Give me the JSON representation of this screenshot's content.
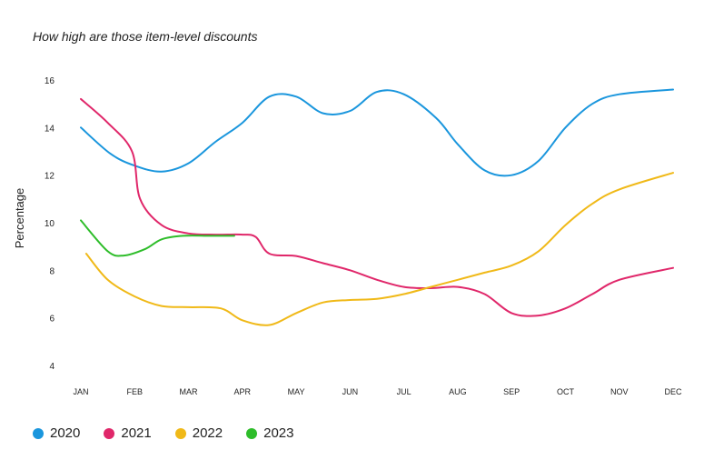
{
  "chart_data": {
    "type": "line",
    "title": "How high are those item-level discounts",
    "xlabel": "",
    "ylabel": "Percentage",
    "categories": [
      "JAN",
      "FEB",
      "MAR",
      "APR",
      "MAY",
      "JUN",
      "JUL",
      "AUG",
      "SEP",
      "OCT",
      "NOV",
      "DEC"
    ],
    "ylim": [
      4,
      16
    ],
    "yticks": [
      4,
      6,
      8,
      10,
      12,
      14,
      16
    ],
    "grid": false,
    "legend_position": "bottom-left",
    "series": [
      {
        "name": "2020",
        "color": "#1a96dd",
        "points": [
          [
            0,
            14.0
          ],
          [
            0.55,
            12.9
          ],
          [
            1.0,
            12.4
          ],
          [
            1.5,
            12.15
          ],
          [
            2.0,
            12.5
          ],
          [
            2.5,
            13.4
          ],
          [
            3.0,
            14.2
          ],
          [
            3.5,
            15.3
          ],
          [
            4.0,
            15.3
          ],
          [
            4.5,
            14.6
          ],
          [
            5.0,
            14.7
          ],
          [
            5.5,
            15.5
          ],
          [
            6.0,
            15.4
          ],
          [
            6.6,
            14.4
          ],
          [
            7.0,
            13.3
          ],
          [
            7.5,
            12.2
          ],
          [
            8.0,
            12.0
          ],
          [
            8.5,
            12.6
          ],
          [
            9.0,
            14.0
          ],
          [
            9.5,
            15.0
          ],
          [
            10.0,
            15.4
          ],
          [
            11.0,
            15.6
          ]
        ]
      },
      {
        "name": "2021",
        "color": "#e0276a",
        "points": [
          [
            0,
            15.2
          ],
          [
            0.5,
            14.2
          ],
          [
            0.95,
            13.0
          ],
          [
            1.1,
            11.0
          ],
          [
            1.5,
            9.9
          ],
          [
            2.0,
            9.55
          ],
          [
            2.5,
            9.5
          ],
          [
            3.0,
            9.5
          ],
          [
            3.25,
            9.4
          ],
          [
            3.5,
            8.7
          ],
          [
            4.0,
            8.6
          ],
          [
            4.5,
            8.3
          ],
          [
            5.0,
            8.0
          ],
          [
            5.5,
            7.6
          ],
          [
            6.0,
            7.3
          ],
          [
            6.5,
            7.25
          ],
          [
            7.0,
            7.3
          ],
          [
            7.5,
            7.0
          ],
          [
            8.0,
            6.2
          ],
          [
            8.5,
            6.1
          ],
          [
            9.0,
            6.4
          ],
          [
            9.5,
            7.0
          ],
          [
            10.0,
            7.6
          ],
          [
            11.0,
            8.1
          ]
        ]
      },
      {
        "name": "2022",
        "color": "#f0b918",
        "points": [
          [
            0.1,
            8.7
          ],
          [
            0.5,
            7.6
          ],
          [
            1.0,
            6.9
          ],
          [
            1.5,
            6.5
          ],
          [
            2.0,
            6.45
          ],
          [
            2.6,
            6.4
          ],
          [
            3.0,
            5.9
          ],
          [
            3.5,
            5.7
          ],
          [
            4.0,
            6.2
          ],
          [
            4.5,
            6.65
          ],
          [
            5.0,
            6.75
          ],
          [
            5.5,
            6.8
          ],
          [
            6.0,
            7.0
          ],
          [
            6.5,
            7.3
          ],
          [
            7.0,
            7.6
          ],
          [
            7.5,
            7.9
          ],
          [
            8.0,
            8.2
          ],
          [
            8.5,
            8.8
          ],
          [
            9.0,
            9.9
          ],
          [
            9.5,
            10.8
          ],
          [
            10.0,
            11.4
          ],
          [
            11.0,
            12.1
          ]
        ]
      },
      {
        "name": "2023",
        "color": "#2ebd2a",
        "points": [
          [
            0,
            10.1
          ],
          [
            0.5,
            8.8
          ],
          [
            0.8,
            8.62
          ],
          [
            1.2,
            8.9
          ],
          [
            1.5,
            9.3
          ],
          [
            1.9,
            9.45
          ],
          [
            2.4,
            9.45
          ],
          [
            2.85,
            9.45
          ]
        ]
      }
    ]
  }
}
